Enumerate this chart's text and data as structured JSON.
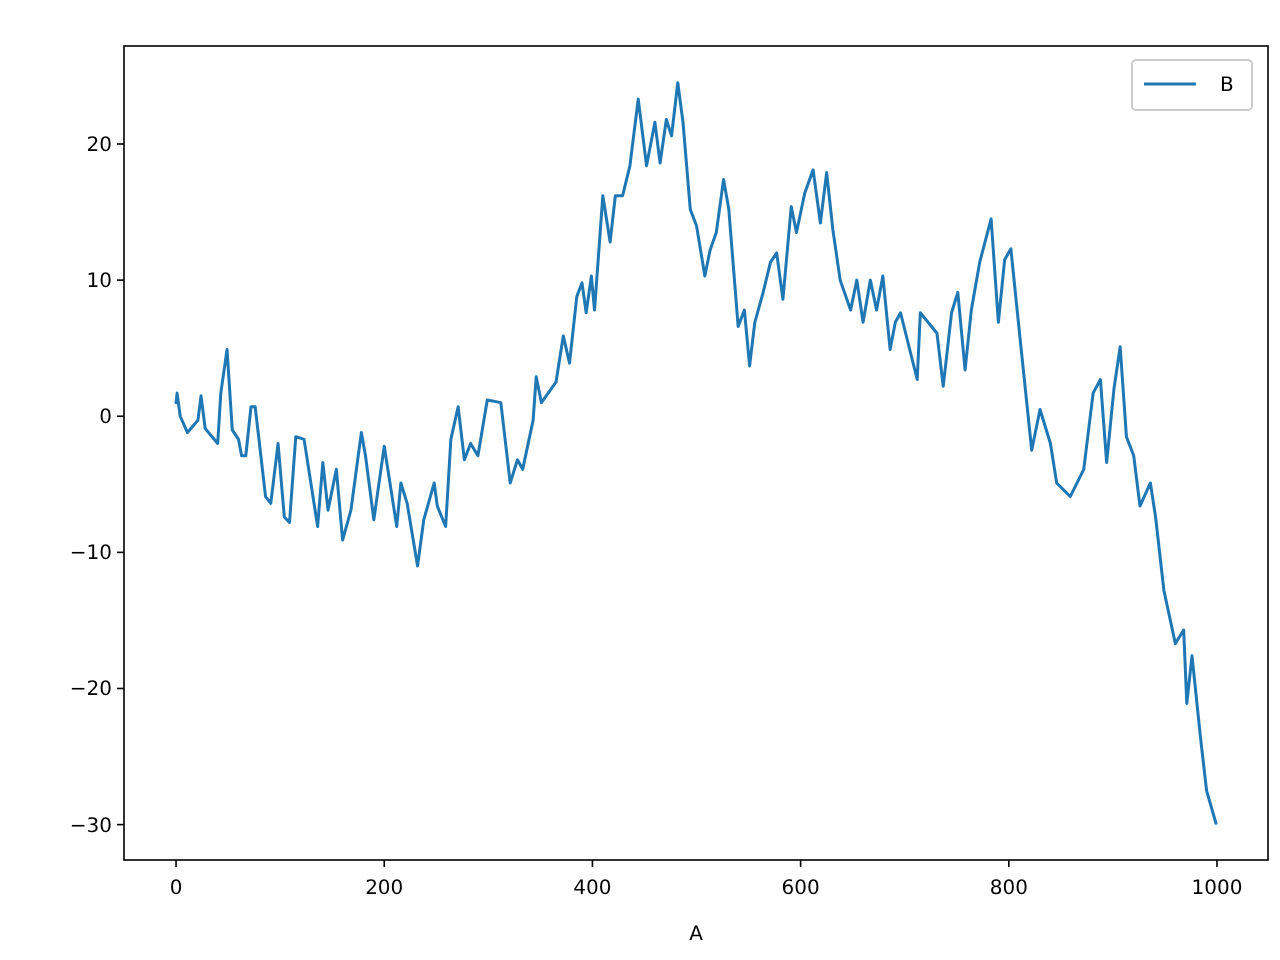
{
  "chart_data": {
    "type": "line",
    "xlabel": "A",
    "legend": "top right",
    "grid": false,
    "xlim": [
      -50,
      1049
    ],
    "ylim": [
      -32.6,
      27.2
    ],
    "xticks": [
      0,
      200,
      400,
      600,
      800,
      1000
    ],
    "yticks": [
      -30,
      -20,
      -10,
      0,
      10,
      20
    ],
    "x": [
      0,
      1,
      4,
      11,
      21,
      24,
      28,
      40,
      43,
      49,
      54,
      60,
      63,
      67,
      72,
      76,
      86,
      91,
      98,
      104,
      109,
      115,
      123,
      136,
      141,
      146,
      154,
      160,
      168,
      178,
      182,
      190,
      200,
      212,
      216,
      222,
      232,
      238,
      248,
      251,
      259,
      264,
      271,
      277,
      283,
      290,
      299,
      312,
      321,
      328,
      333,
      343,
      346,
      351,
      365,
      372,
      378,
      385,
      390,
      394,
      399,
      402,
      410,
      417,
      422,
      429,
      436,
      444,
      452,
      460,
      465,
      471,
      476,
      482,
      487,
      494,
      500,
      508,
      513,
      519,
      526,
      531,
      540,
      546,
      551,
      556,
      564,
      571,
      577,
      583,
      591,
      596,
      604,
      612,
      619,
      625,
      631,
      638,
      648,
      654,
      660,
      667,
      673,
      679,
      686,
      691,
      696,
      712,
      715,
      731,
      737,
      745,
      751,
      758,
      764,
      772,
      783,
      790,
      796,
      802,
      808,
      822,
      830,
      840,
      846,
      859,
      872,
      881,
      888,
      894,
      901,
      907,
      913,
      920,
      926,
      936,
      941,
      949,
      960,
      968,
      971,
      976,
      984,
      990,
      999
    ],
    "series": [
      {
        "name": "B",
        "color": "#1f77b4",
        "values": [
          1.0,
          1.7,
          0,
          -1.2,
          -0.3,
          1.5,
          -0.9,
          -2.0,
          1.7,
          4.9,
          -1.0,
          -1.7,
          -2.9,
          -2.9,
          0.7,
          0.7,
          -5.9,
          -6.4,
          -2.0,
          -7.4,
          -7.8,
          -1.5,
          -1.7,
          -8.1,
          -3.4,
          -6.9,
          -3.9,
          -9.1,
          -6.9,
          -1.2,
          -2.9,
          -7.6,
          -2.2,
          -8.1,
          -4.9,
          -6.4,
          -11.0,
          -7.6,
          -4.9,
          -6.6,
          -8.1,
          -1.7,
          0.7,
          -3.2,
          -2.0,
          -2.9,
          1.2,
          1.0,
          -4.9,
          -3.2,
          -3.9,
          -0.3,
          2.9,
          1.0,
          2.5,
          5.9,
          3.9,
          8.8,
          9.8,
          7.6,
          10.3,
          7.8,
          16.2,
          12.8,
          16.2,
          16.2,
          18.4,
          23.3,
          18.4,
          21.6,
          18.6,
          21.8,
          20.6,
          24.5,
          21.6,
          15.2,
          14.0,
          10.3,
          12.2,
          13.5,
          17.4,
          15.2,
          6.6,
          7.8,
          3.7,
          6.9,
          9.1,
          11.3,
          12.0,
          8.6,
          15.4,
          13.5,
          16.4,
          18.1,
          14.2,
          17.9,
          13.7,
          10.0,
          7.8,
          10.0,
          6.9,
          10.0,
          7.8,
          10.3,
          4.9,
          6.9,
          7.6,
          2.7,
          7.6,
          6.1,
          2.2,
          7.6,
          9.1,
          3.4,
          7.8,
          11.3,
          14.5,
          6.9,
          11.5,
          12.3,
          7.8,
          -2.5,
          0.5,
          -2.0,
          -4.9,
          -5.9,
          -3.9,
          1.7,
          2.7,
          -3.4,
          2.0,
          5.1,
          -1.5,
          -2.9,
          -6.6,
          -4.9,
          -7.4,
          -12.8,
          -16.7,
          -15.7,
          -21.1,
          -17.6,
          -23.5,
          -27.5,
          -29.9
        ]
      }
    ]
  }
}
